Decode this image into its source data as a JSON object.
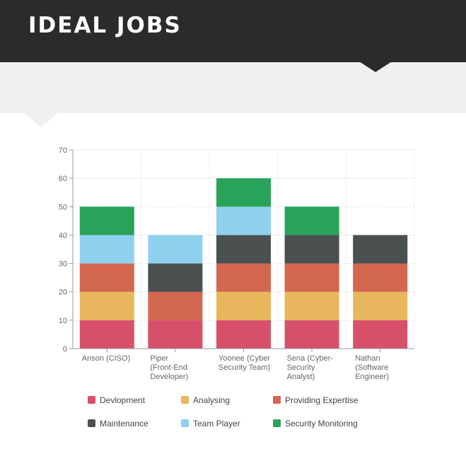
{
  "header": {
    "title": "IDEAL JOBS"
  },
  "colors": {
    "header_bg": "#2b2b2b",
    "band_bg": "#f0f0f0"
  },
  "chart_data": {
    "type": "bar",
    "stacked": true,
    "title": "",
    "xlabel": "",
    "ylabel": "",
    "ylim": [
      0,
      70
    ],
    "yticks": [
      0,
      10,
      20,
      30,
      40,
      50,
      60,
      70
    ],
    "grid": true,
    "legend_position": "bottom",
    "categories": [
      "Anson (CISO)",
      "Piper (Front-End Developer)",
      "Yoonee (Cyber Security Team)",
      "Sena (Cyber-Security Analyst)",
      "Nathan (Software Engineer)"
    ],
    "category_lines": [
      [
        "Anson (CISO)"
      ],
      [
        "Piper",
        "(Front-End",
        "Developer)"
      ],
      [
        "Yoonee (Cyber",
        "Security Team)"
      ],
      [
        "Sena (Cyber-",
        "Security",
        "Analyst)"
      ],
      [
        "Nathan",
        "(Software",
        "Engineer)"
      ]
    ],
    "series": [
      {
        "name": "Devlopment",
        "color": "#d6506a",
        "values": [
          10,
          10,
          10,
          10,
          10
        ]
      },
      {
        "name": "Analysing",
        "color": "#e8b75d",
        "values": [
          10,
          0,
          10,
          10,
          10
        ]
      },
      {
        "name": "Providing Expertise",
        "color": "#d4674f",
        "values": [
          10,
          10,
          10,
          10,
          10
        ]
      },
      {
        "name": "Maintenance",
        "color": "#4a4f4f",
        "values": [
          0,
          10,
          10,
          10,
          10
        ]
      },
      {
        "name": "Team Player",
        "color": "#8fd0ee",
        "values": [
          10,
          10,
          10,
          0,
          0
        ]
      },
      {
        "name": "Security Monitoring",
        "color": "#27a35a",
        "values": [
          10,
          0,
          10,
          10,
          0
        ]
      }
    ]
  }
}
